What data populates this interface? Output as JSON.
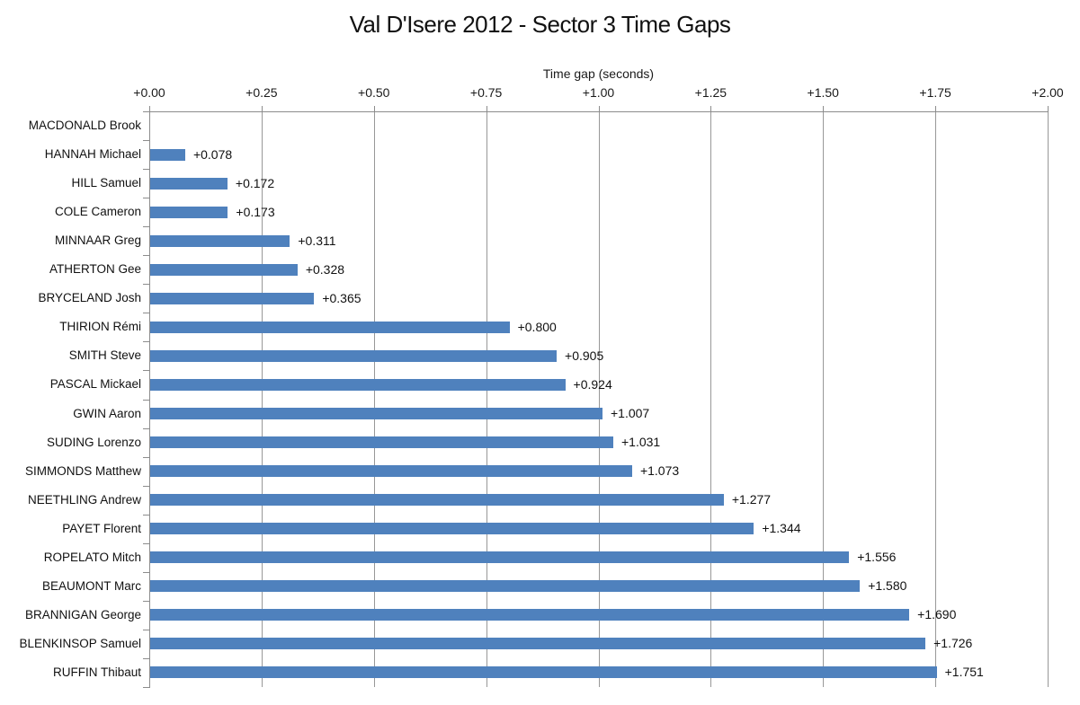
{
  "chart_data": {
    "type": "bar",
    "orientation": "horizontal",
    "title": "Val D'Isere 2012 - Sector 3 Time Gaps",
    "xlabel": "Time gap (seconds)",
    "xlim": [
      0,
      2.0
    ],
    "tick_step": 0.25,
    "x_tick_labels": [
      "+0.00",
      "+0.25",
      "+0.50",
      "+0.75",
      "+1.00",
      "+1.25",
      "+1.50",
      "+1.75",
      "+2.00"
    ],
    "categories": [
      "MACDONALD Brook",
      "HANNAH Michael",
      "HILL Samuel",
      "COLE Cameron",
      "MINNAAR Greg",
      "ATHERTON Gee",
      "BRYCELAND Josh",
      "THIRION Rémi",
      "SMITH Steve",
      "PASCAL Mickael",
      "GWIN Aaron",
      "SUDING Lorenzo",
      "SIMMONDS Matthew",
      "NEETHLING Andrew",
      "PAYET Florent",
      "ROPELATO Mitch",
      "BEAUMONT Marc",
      "BRANNIGAN George",
      "BLENKINSOP Samuel",
      "RUFFIN Thibaut"
    ],
    "values": [
      0.0,
      0.078,
      0.172,
      0.173,
      0.311,
      0.328,
      0.365,
      0.8,
      0.905,
      0.924,
      1.007,
      1.031,
      1.073,
      1.277,
      1.344,
      1.556,
      1.58,
      1.69,
      1.726,
      1.751
    ],
    "bar_labels": [
      "",
      "+0.078",
      "+0.172",
      "+0.173",
      "+0.311",
      "+0.328",
      "+0.365",
      "+0.800",
      "+0.905",
      "+0.924",
      "+1.007",
      "+1.031",
      "+1.073",
      "+1.277",
      "+1.344",
      "+1.556",
      "+1.580",
      "+1.690",
      "+1.726",
      "+1.751"
    ],
    "bar_color": "#4F81BD",
    "gridline_color": "#989898",
    "axis_color": "#8C8C8C",
    "text_color": "#111111",
    "background_color": "#FFFFFF",
    "grid": true,
    "legend_position": "none"
  }
}
